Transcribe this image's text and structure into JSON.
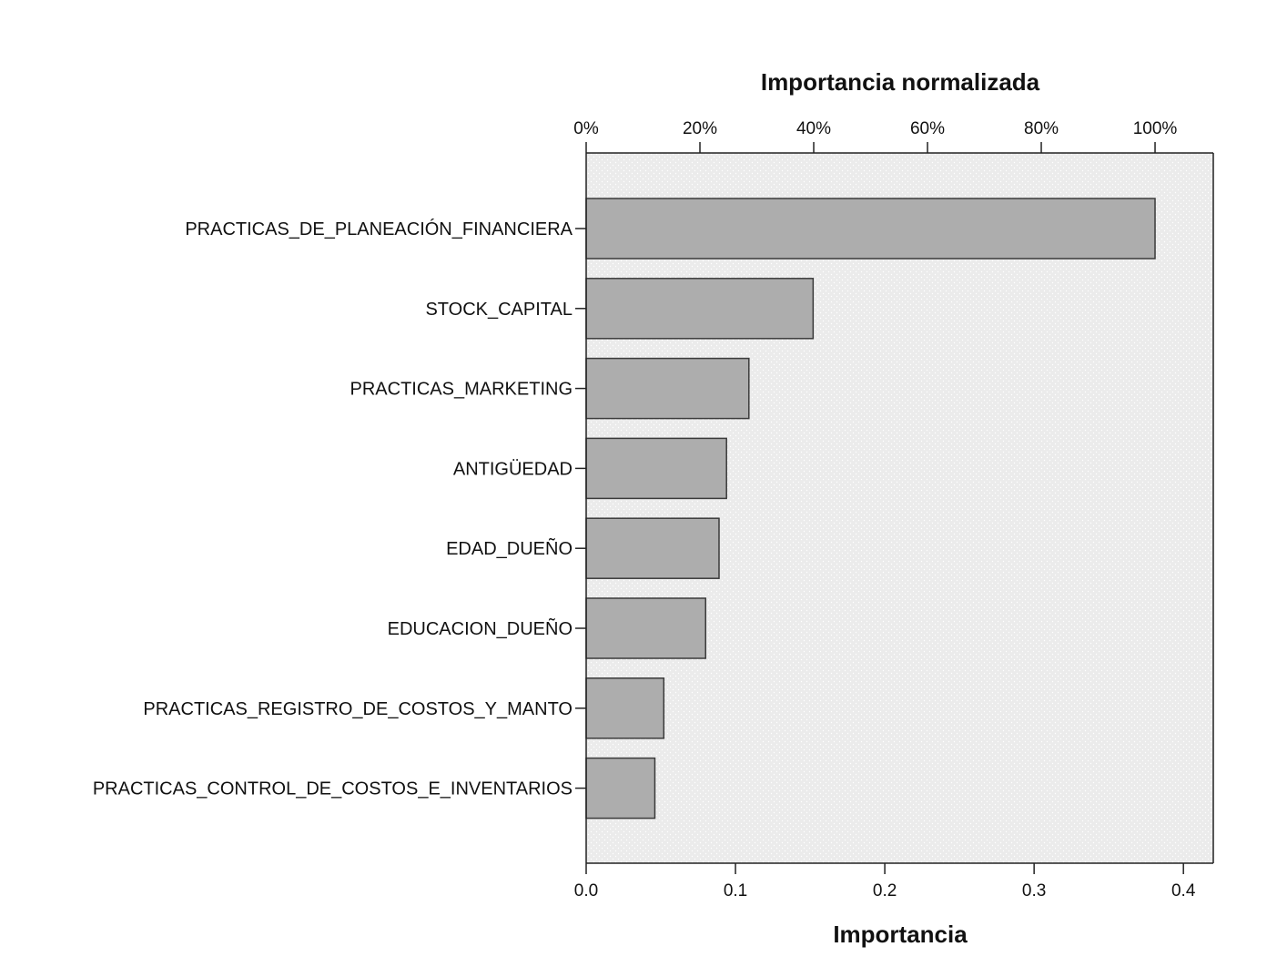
{
  "chart_data": {
    "type": "bar",
    "orientation": "horizontal",
    "categories": [
      "PRACTICAS_DE_PLANEACIÓN_FINANCIERA",
      "STOCK_CAPITAL",
      "PRACTICAS_MARKETING",
      "ANTIGÜEDAD",
      "EDAD_DUEÑO",
      "EDUCACION_DUEÑO",
      "PRACTICAS_REGISTRO_DE_COSTOS_Y_MANTO",
      "PRACTICAS_CONTROL_DE_COSTOS_E_INVENTARIOS"
    ],
    "values": [
      0.381,
      0.152,
      0.109,
      0.094,
      0.089,
      0.08,
      0.052,
      0.046
    ],
    "xlabel": "Importancia",
    "xlim": [
      0,
      0.42
    ],
    "x_ticks": [
      0.0,
      0.1,
      0.2,
      0.3,
      0.4
    ],
    "x_tick_labels": [
      "0.0",
      "0.1",
      "0.2",
      "0.3",
      "0.4"
    ],
    "secondary_xlabel": "Importancia normalizada",
    "secondary_x_ticks_percent": [
      0,
      20,
      40,
      60,
      80,
      100
    ],
    "secondary_x_tick_labels": [
      "0%",
      "20%",
      "40%",
      "60%",
      "80%",
      "100%"
    ],
    "secondary_x_position": "top",
    "grid": false,
    "legend": "none",
    "colors": {
      "plot_background": "#ebebeb",
      "bar_fill": "#adadad",
      "bar_stroke": "#3a3a3a",
      "axis": "#222222"
    }
  }
}
